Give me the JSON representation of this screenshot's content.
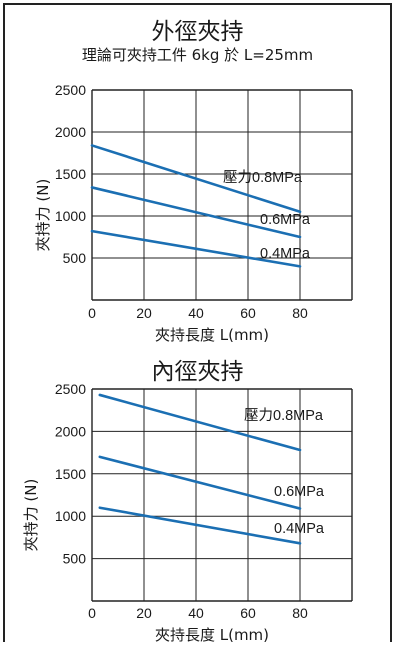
{
  "chart_data": [
    {
      "type": "line",
      "title": "外徑夾持",
      "subtitle": "理論可夾持工件 6kg 於 L=25mm",
      "xlabel": "夾持長度 L(mm)",
      "ylabel": "夾持力 (N)",
      "xlim": [
        0,
        100
      ],
      "ylim": [
        0,
        2500
      ],
      "xticks": [
        "0",
        "20",
        "40",
        "60",
        "80"
      ],
      "yticks": [
        "500",
        "1000",
        "1500",
        "2000",
        "2500"
      ],
      "grid": true,
      "series": [
        {
          "name": "壓力0.8MPa",
          "color": "#1b6fb3",
          "x": [
            0,
            80
          ],
          "y": [
            1840,
            1050
          ]
        },
        {
          "name": "0.6MPa",
          "color": "#1b6fb3",
          "x": [
            0,
            80
          ],
          "y": [
            1340,
            750
          ]
        },
        {
          "name": "0.4MPa",
          "color": "#1b6fb3",
          "x": [
            0,
            80
          ],
          "y": [
            820,
            400
          ]
        }
      ]
    },
    {
      "type": "line",
      "title": "內徑夾持",
      "xlabel": "夾持長度 L(mm)",
      "ylabel": "夾持力 (N)",
      "xlim": [
        0,
        100
      ],
      "ylim": [
        0,
        2500
      ],
      "xticks": [
        "0",
        "20",
        "40",
        "60",
        "80"
      ],
      "yticks": [
        "500",
        "1000",
        "1500",
        "2000",
        "2500"
      ],
      "grid": true,
      "series": [
        {
          "name": "壓力0.8MPa",
          "color": "#1b6fb3",
          "x": [
            3,
            80
          ],
          "y": [
            2430,
            1780
          ]
        },
        {
          "name": "0.6MPa",
          "color": "#1b6fb3",
          "x": [
            3,
            80
          ],
          "y": [
            1700,
            1090
          ]
        },
        {
          "name": "0.4MPa",
          "color": "#1b6fb3",
          "x": [
            3,
            80
          ],
          "y": [
            1100,
            680
          ]
        }
      ]
    }
  ]
}
